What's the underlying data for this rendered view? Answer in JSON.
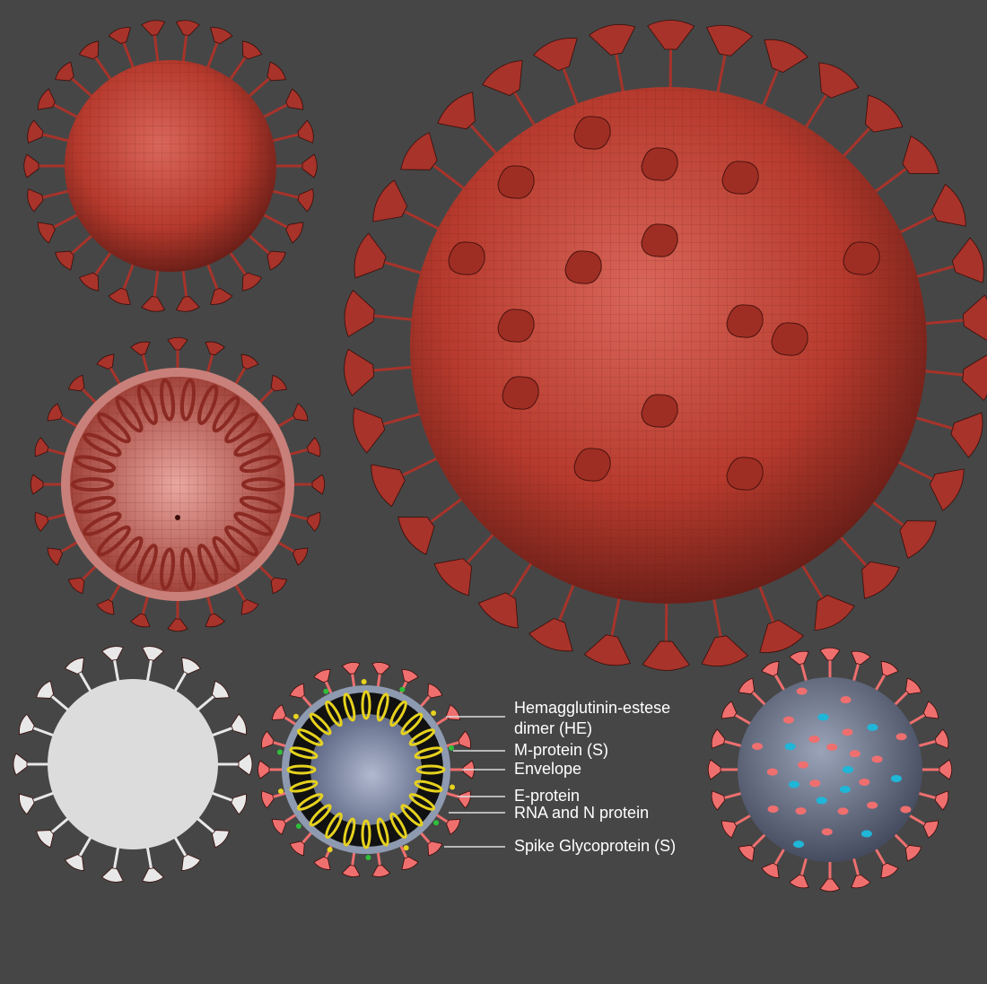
{
  "colors": {
    "background": "#464646",
    "virus_red": "#b8392c",
    "spike_red": "#a8332a",
    "inner_gray": "#6d7690",
    "rna_yellow": "#e6d21e",
    "spike_pink": "#ef6f6f",
    "m_protein_green": "#2fbf3a",
    "he_cyan": "#1fb6d8",
    "white_model": "#e8e8e8"
  },
  "labels": [
    {
      "text": "Hemagglutinin-estese"
    },
    {
      "text": "dimer (HE)"
    },
    {
      "text": "M-protein (S)"
    },
    {
      "text": "Envelope"
    },
    {
      "text": "E-protein"
    },
    {
      "text": "RNA and N protein"
    },
    {
      "text": "Spike Glycoprotein (S)"
    }
  ]
}
